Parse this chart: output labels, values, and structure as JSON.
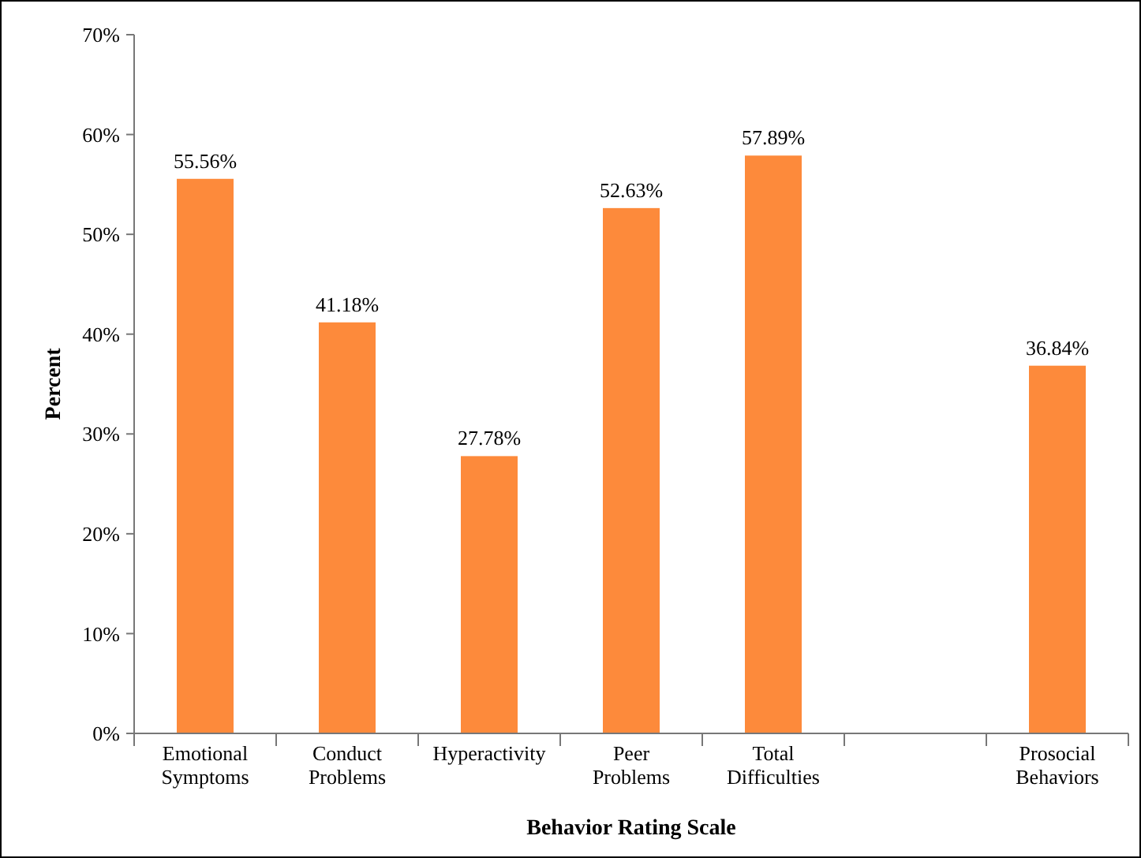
{
  "chart_data": {
    "type": "bar",
    "xlabel": "Behavior Rating Scale",
    "ylabel": "Percent",
    "categories": [
      "Emotional Symptoms",
      "Conduct Problems",
      "Hyperactivity",
      "Peer Problems",
      "Total Difficulties",
      null,
      "Prosocial Behaviors"
    ],
    "values": [
      55.56,
      41.18,
      27.78,
      52.63,
      57.89,
      null,
      36.84
    ],
    "value_labels": [
      "55.56%",
      "41.18%",
      "27.78%",
      "52.63%",
      "57.89%",
      null,
      "36.84%"
    ],
    "color": "#fd8a3b",
    "ylim": [
      0,
      70
    ],
    "yticks": [
      {
        "value": 0,
        "label": "0%"
      },
      {
        "value": 10,
        "label": "10%"
      },
      {
        "value": 20,
        "label": "20%"
      },
      {
        "value": 30,
        "label": "30%"
      },
      {
        "value": 40,
        "label": "40%"
      },
      {
        "value": 50,
        "label": "50%"
      },
      {
        "value": 60,
        "label": "60%"
      },
      {
        "value": 70,
        "label": "70%"
      }
    ],
    "grid": false
  }
}
